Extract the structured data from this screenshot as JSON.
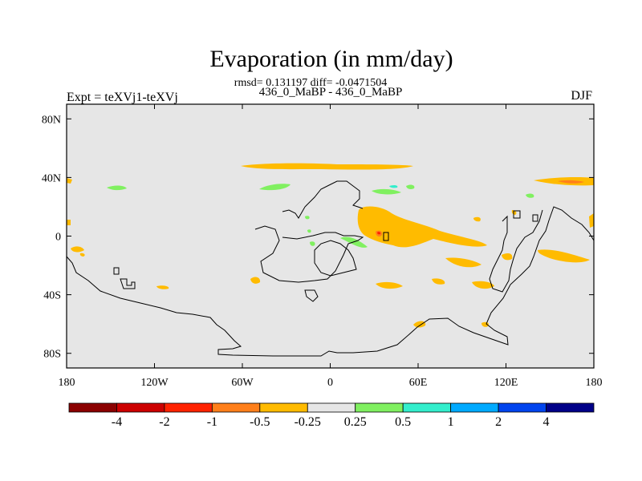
{
  "chart_data": {
    "type": "heatmap",
    "title": "Evaporation (in mm/day)",
    "stats_line": "rmsd= 0.131197 diff= -0.0471504",
    "subtitle": "436_0_MaBP - 436_0_MaBP",
    "left_label": "Expt = teXVj1-teXVj",
    "right_label": "DJF",
    "xlim": [
      -180,
      180
    ],
    "ylim": [
      -90,
      90
    ],
    "x_ticks": [
      {
        "value": -180,
        "label": "180"
      },
      {
        "value": -120,
        "label": "120W"
      },
      {
        "value": -60,
        "label": "60W"
      },
      {
        "value": 0,
        "label": "0"
      },
      {
        "value": 60,
        "label": "60E"
      },
      {
        "value": 120,
        "label": "120E"
      },
      {
        "value": 180,
        "label": "180"
      }
    ],
    "y_ticks": [
      {
        "value": 80,
        "label": "80N"
      },
      {
        "value": 40,
        "label": "40N"
      },
      {
        "value": 0,
        "label": "0"
      },
      {
        "value": -40,
        "label": "40S"
      },
      {
        "value": -80,
        "label": "80S"
      }
    ],
    "colorbar": {
      "colors": [
        "#8b0000",
        "#cc0000",
        "#ff2200",
        "#ff7f1a",
        "#ffbb00",
        "#e6e6e6",
        "#80f060",
        "#33eecc",
        "#00aaff",
        "#0044ee",
        "#000088"
      ],
      "labels": [
        "-4",
        "-2",
        "-1",
        "-0.5",
        "-0.25",
        "0.25",
        "0.5",
        "1",
        "2",
        "4"
      ]
    },
    "background_color": "#e6e6e6",
    "anomaly_regions": [
      {
        "name": "north-pacific-band",
        "level": "-0.25 to -0.5",
        "color": "#ffbb00",
        "lon": -60,
        "lat": 48
      },
      {
        "name": "north-atlantic-patch",
        "level": "0.25 to 0.5",
        "color": "#80f060",
        "lon": -35,
        "lat": 34
      },
      {
        "name": "tropical-africa",
        "level": "-0.25 to -0.5",
        "color": "#ffbb00",
        "lon": 45,
        "lat": 5
      },
      {
        "name": "east-africa-core",
        "level": "-0.5 to -1",
        "color": "#ff7f1a",
        "lon": 35,
        "lat": 2
      },
      {
        "name": "nw-pacific",
        "level": "-0.25 to -0.5",
        "color": "#ffbb00",
        "lon": 160,
        "lat": 38
      },
      {
        "name": "south-pacific",
        "level": "-0.25 to -0.5",
        "color": "#ffbb00",
        "lon": 165,
        "lat": -15
      },
      {
        "name": "southern-ocean",
        "level": "-0.25 to -0.5",
        "color": "#ffbb00",
        "lon": 70,
        "lat": -60
      }
    ]
  }
}
